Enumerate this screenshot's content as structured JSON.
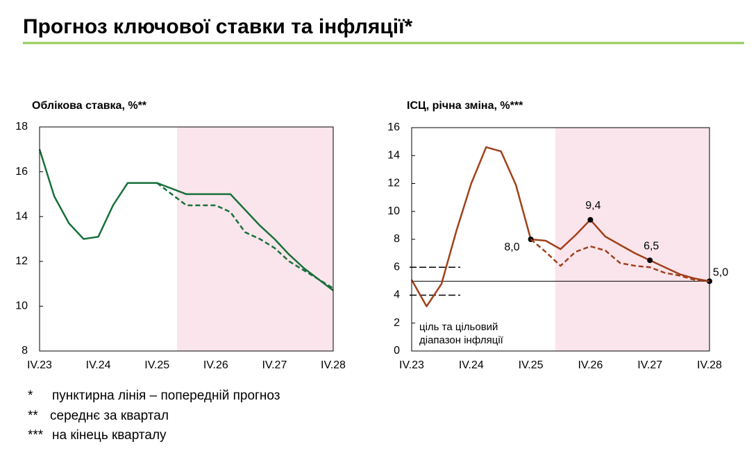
{
  "title": "Прогноз ключової ставки та інфляції*",
  "chart_data": [
    {
      "type": "line",
      "title": "Облікова ставка, %**",
      "categories": [
        "IV.23",
        null,
        null,
        null,
        "IV.24",
        null,
        null,
        null,
        "IV.25",
        null,
        null,
        null,
        "IV.26",
        null,
        null,
        null,
        "IV.27",
        null,
        null,
        null,
        "IV.28"
      ],
      "series": [
        {
          "style": "solid",
          "color": "#17703a",
          "values": [
            17.0,
            14.9,
            13.7,
            13.0,
            13.1,
            14.5,
            15.5,
            15.5,
            15.5,
            15.25,
            15.0,
            15.0,
            15.0,
            15.0,
            14.3,
            13.6,
            13.0,
            12.3,
            11.7,
            11.2,
            10.7
          ]
        },
        {
          "style": "dashed",
          "color": "#17703a",
          "values": [
            null,
            null,
            null,
            null,
            null,
            null,
            null,
            null,
            15.5,
            15.0,
            14.5,
            14.5,
            14.5,
            14.2,
            13.3,
            13.0,
            12.6,
            12.0,
            11.6,
            11.2,
            10.8
          ]
        }
      ],
      "ylim": [
        8,
        18
      ],
      "yticks": [
        8,
        10,
        12,
        14,
        16,
        18
      ]
    },
    {
      "type": "line",
      "title": "ІСЦ, річна зміна, %***",
      "categories": [
        "IV.23",
        null,
        null,
        null,
        "IV.24",
        null,
        null,
        null,
        "IV.25",
        null,
        null,
        null,
        "IV.26",
        null,
        null,
        null,
        "IV.27",
        null,
        null,
        null,
        "IV.28"
      ],
      "series": [
        {
          "style": "solid",
          "color": "#a0401a",
          "values": [
            5.1,
            3.2,
            4.8,
            8.6,
            12.0,
            14.6,
            14.3,
            11.9,
            8.0,
            7.9,
            7.3,
            8.3,
            9.4,
            8.2,
            7.6,
            7.0,
            6.5,
            6.0,
            5.5,
            5.2,
            5.0
          ],
          "value_labels": [
            null,
            null,
            null,
            null,
            null,
            null,
            null,
            null,
            "8,0",
            null,
            null,
            null,
            "9,4",
            null,
            null,
            null,
            "6,5",
            null,
            null,
            null,
            "5,0"
          ]
        },
        {
          "style": "dashed",
          "color": "#a0401a",
          "values": [
            null,
            null,
            null,
            null,
            null,
            null,
            null,
            null,
            8.0,
            7.1,
            6.1,
            7.1,
            7.5,
            7.2,
            6.3,
            6.1,
            6.0,
            5.6,
            5.4,
            5.1,
            5.0
          ]
        }
      ],
      "target": 5,
      "target_range": [
        4,
        6
      ],
      "annotation": [
        "ціль та цільовий",
        "діапазон інфляції"
      ],
      "ylim": [
        0,
        16
      ],
      "yticks": [
        0,
        2,
        4,
        6,
        8,
        10,
        12,
        14,
        16
      ]
    }
  ],
  "footnotes": [
    {
      "mark": "*",
      "text": "пунктирна лінія – попередній прогноз"
    },
    {
      "mark": "**",
      "text": "середнє за квартал"
    },
    {
      "mark": "***",
      "text": "на кінець кварталу"
    }
  ]
}
